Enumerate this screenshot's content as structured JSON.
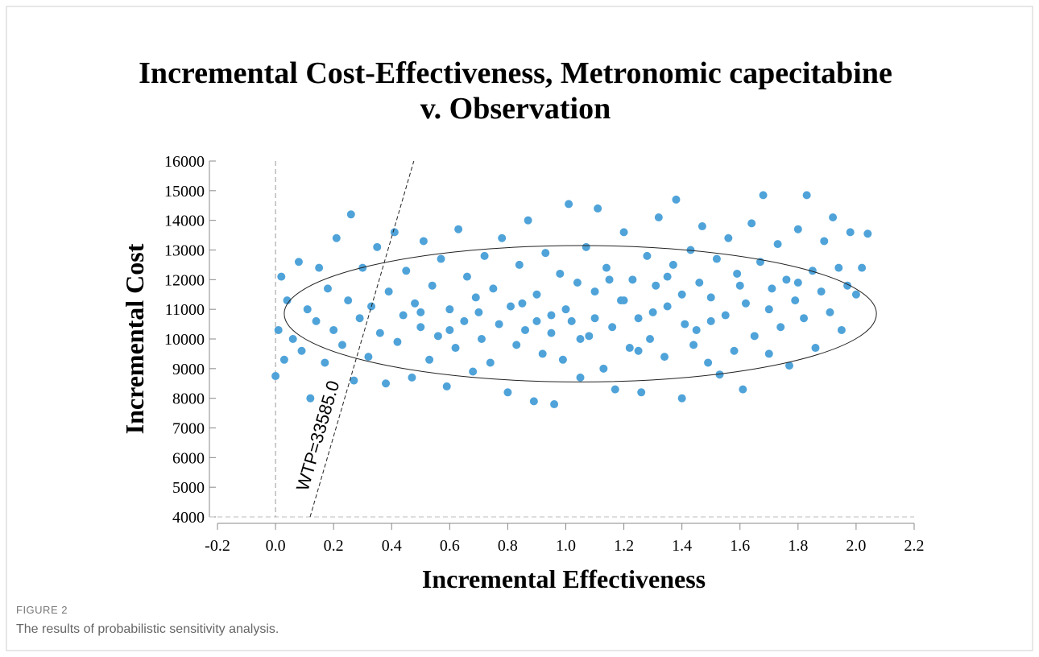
{
  "chart_data": {
    "type": "scatter",
    "title": [
      "Incremental Cost-Effectiveness, Metronomic capecitabine",
      "v. Observation"
    ],
    "xlabel": "Incremental Effectiveness",
    "ylabel": "Incremental Cost",
    "color": "#4fa3d9",
    "xlim": [
      -0.2,
      2.2
    ],
    "ylim": [
      4000,
      16000
    ],
    "xticks": [
      -0.2,
      {
        "value": 0,
        "label": "0.0"
      },
      0.2,
      0.4,
      0.6,
      0.8,
      {
        "value": 1,
        "label": "1.0"
      },
      1.2,
      1.4,
      1.6,
      1.8,
      {
        "value": 2,
        "label": "2.0"
      },
      2.2
    ],
    "yticks": [
      4000,
      5000,
      6000,
      7000,
      8000,
      9000,
      10000,
      11000,
      12000,
      13000,
      14000,
      15000,
      16000
    ],
    "wtp": {
      "value": 33585,
      "label": "WTP=33585.0"
    },
    "ellipse": {
      "cx": 1.05,
      "cy": 10850,
      "rx": 1.02,
      "ry": 2300
    },
    "x": [
      0.0,
      0.01,
      0.02,
      0.03,
      0.04,
      0.06,
      0.08,
      0.09,
      0.11,
      0.12,
      0.14,
      0.15,
      0.17,
      0.18,
      0.2,
      0.21,
      0.23,
      0.25,
      0.26,
      0.27,
      0.29,
      0.3,
      0.32,
      0.33,
      0.35,
      0.36,
      0.38,
      0.39,
      0.41,
      0.42,
      0.44,
      0.45,
      0.47,
      0.48,
      0.5,
      0.51,
      0.53,
      0.54,
      0.56,
      0.57,
      0.59,
      0.6,
      0.62,
      0.63,
      0.65,
      0.66,
      0.68,
      0.69,
      0.71,
      0.72,
      0.74,
      0.75,
      0.77,
      0.78,
      0.8,
      0.81,
      0.83,
      0.84,
      0.86,
      0.87,
      0.89,
      0.9,
      0.92,
      0.93,
      0.95,
      0.96,
      0.98,
      0.99,
      1.01,
      1.02,
      1.04,
      1.05,
      1.07,
      1.08,
      1.1,
      1.11,
      1.13,
      1.14,
      1.16,
      1.17,
      1.19,
      1.2,
      1.22,
      1.23,
      1.25,
      1.26,
      1.28,
      1.29,
      1.31,
      1.32,
      1.34,
      1.35,
      1.37,
      1.38,
      1.4,
      1.41,
      1.43,
      1.44,
      1.46,
      1.47,
      1.49,
      1.5,
      1.52,
      1.53,
      1.55,
      1.56,
      1.58,
      1.59,
      1.61,
      1.62,
      1.64,
      1.65,
      1.67,
      1.68,
      1.7,
      1.71,
      1.73,
      1.74,
      1.76,
      1.77,
      1.79,
      1.8,
      1.82,
      1.83,
      1.85,
      1.86,
      1.88,
      1.89,
      1.91,
      1.92,
      1.94,
      1.95,
      1.97,
      1.98,
      2.0,
      2.02,
      2.04,
      0.7,
      0.85,
      0.95,
      1.0,
      1.1,
      1.2,
      1.3,
      1.4,
      1.5,
      1.6,
      1.7,
      1.8,
      0.5,
      0.6,
      1.15,
      1.45,
      1.25,
      0.9,
      1.05,
      1.35
    ],
    "values": [
      8750,
      10300,
      12100,
      9300,
      11300,
      10000,
      12600,
      9600,
      11000,
      8000,
      10600,
      12400,
      9200,
      11700,
      10300,
      13400,
      9800,
      11300,
      14200,
      8600,
      10700,
      12400,
      9400,
      11100,
      13100,
      10200,
      8500,
      11600,
      13600,
      9900,
      10800,
      12300,
      8700,
      11200,
      10400,
      13300,
      9300,
      11800,
      10100,
      12700,
      8400,
      11000,
      9700,
      13700,
      10600,
      12100,
      8900,
      11400,
      10000,
      12800,
      9200,
      11700,
      10500,
      13400,
      8200,
      11100,
      9800,
      12500,
      10300,
      14000,
      7900,
      11500,
      9500,
      12900,
      10800,
      7800,
      12200,
      9300,
      14550,
      10600,
      11900,
      8700,
      13100,
      10100,
      11600,
      14400,
      9000,
      12400,
      10400,
      8300,
      11300,
      13600,
      9700,
      12000,
      10700,
      8200,
      12800,
      10000,
      11800,
      14100,
      9400,
      11100,
      12500,
      14700,
      8000,
      10500,
      13000,
      9800,
      11900,
      13800,
      9200,
      11400,
      12700,
      8800,
      10800,
      13400,
      9600,
      12200,
      8300,
      11200,
      13900,
      10100,
      12600,
      14850,
      9500,
      11700,
      13200,
      10400,
      12000,
      9100,
      11300,
      13700,
      10700,
      14850,
      12300,
      9700,
      11600,
      13300,
      10900,
      14100,
      12400,
      10300,
      11800,
      13600,
      11500,
      12400,
      13550,
      10900,
      11200,
      10200,
      11000,
      10700,
      11300,
      10900,
      11500,
      10600,
      11800,
      11000,
      11900,
      10900,
      10300,
      12000,
      10300,
      9600,
      10600,
      10000,
      12100
    ]
  },
  "caption": {
    "label": "FIGURE 2",
    "text": "The results of probabilistic sensitivity analysis."
  }
}
